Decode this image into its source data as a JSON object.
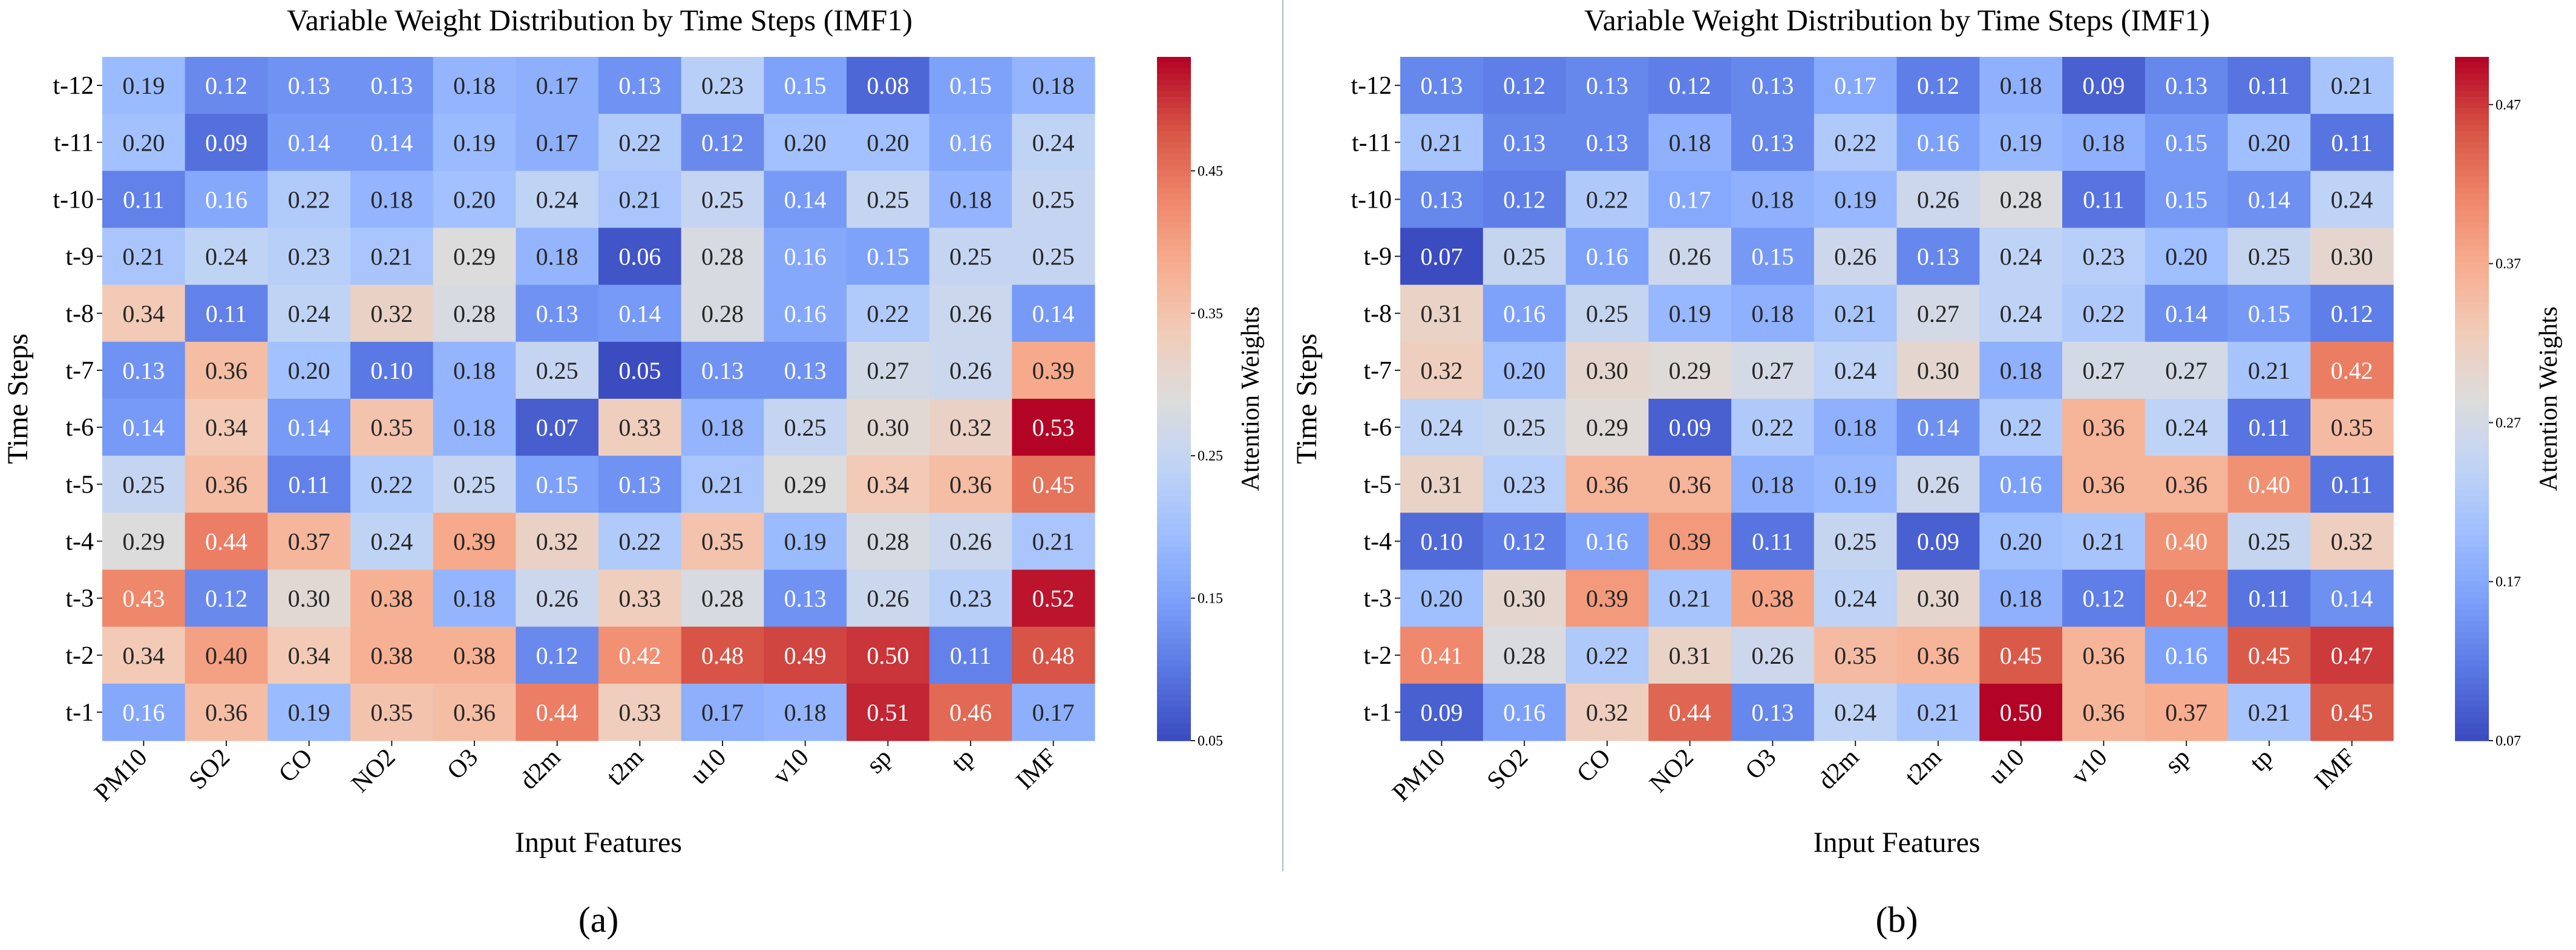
{
  "divider_color": "#a9b8c8",
  "colormap": [
    "#3b4cc0",
    "#5977e3",
    "#7b9ff9",
    "#9ebeff",
    "#c0d4f5",
    "#dddcdc",
    "#f2cbb7",
    "#f7ac8e",
    "#ee8468",
    "#d65244",
    "#b40426"
  ],
  "chart_data": [
    {
      "type": "heatmap",
      "panel_label": "(a)",
      "title": "Variable Weight Distribution by Time Steps (IMF1)",
      "xlabel": "Input Features",
      "ylabel": "Time Steps",
      "colorbar_label": "Attention Weights",
      "x": [
        "PM10",
        "SO2",
        "CO",
        "NO2",
        "O3",
        "d2m",
        "t2m",
        "u10",
        "v10",
        "sp",
        "tp",
        "IMF"
      ],
      "y": [
        "t-12",
        "t-11",
        "t-10",
        "t-9",
        "t-8",
        "t-7",
        "t-6",
        "t-5",
        "t-4",
        "t-3",
        "t-2",
        "t-1"
      ],
      "vlim": [
        0.05,
        0.53
      ],
      "colorbar_ticks": [
        "0.05",
        "0.15",
        "0.25",
        "0.35",
        "0.45"
      ],
      "values": [
        [
          0.19,
          0.12,
          0.13,
          0.13,
          0.18,
          0.17,
          0.13,
          0.23,
          0.15,
          0.08,
          0.15,
          0.18
        ],
        [
          0.2,
          0.09,
          0.14,
          0.14,
          0.19,
          0.17,
          0.22,
          0.12,
          0.2,
          0.2,
          0.16,
          0.24
        ],
        [
          0.11,
          0.16,
          0.22,
          0.18,
          0.2,
          0.24,
          0.21,
          0.25,
          0.14,
          0.25,
          0.18,
          0.25
        ],
        [
          0.21,
          0.24,
          0.23,
          0.21,
          0.29,
          0.18,
          0.06,
          0.28,
          0.16,
          0.15,
          0.25,
          0.25
        ],
        [
          0.34,
          0.11,
          0.24,
          0.32,
          0.28,
          0.13,
          0.14,
          0.28,
          0.16,
          0.22,
          0.26,
          0.14
        ],
        [
          0.13,
          0.36,
          0.2,
          0.1,
          0.18,
          0.25,
          0.05,
          0.13,
          0.13,
          0.27,
          0.26,
          0.39
        ],
        [
          0.14,
          0.34,
          0.14,
          0.35,
          0.18,
          0.07,
          0.33,
          0.18,
          0.25,
          0.3,
          0.32,
          0.53
        ],
        [
          0.25,
          0.36,
          0.11,
          0.22,
          0.25,
          0.15,
          0.13,
          0.21,
          0.29,
          0.34,
          0.36,
          0.45
        ],
        [
          0.29,
          0.44,
          0.37,
          0.24,
          0.39,
          0.32,
          0.22,
          0.35,
          0.19,
          0.28,
          0.26,
          0.21
        ],
        [
          0.43,
          0.12,
          0.3,
          0.38,
          0.18,
          0.26,
          0.33,
          0.28,
          0.13,
          0.26,
          0.23,
          0.52
        ],
        [
          0.34,
          0.4,
          0.34,
          0.38,
          0.38,
          0.12,
          0.42,
          0.48,
          0.49,
          0.5,
          0.11,
          0.48
        ],
        [
          0.16,
          0.36,
          0.19,
          0.35,
          0.36,
          0.44,
          0.33,
          0.17,
          0.18,
          0.51,
          0.46,
          0.17
        ]
      ]
    },
    {
      "type": "heatmap",
      "panel_label": "(b)",
      "title": "Variable Weight Distribution by Time Steps (IMF1)",
      "xlabel": "Input Features",
      "ylabel": "Time Steps",
      "colorbar_label": "Attention Weights",
      "x": [
        "PM10",
        "SO2",
        "CO",
        "NO2",
        "O3",
        "d2m",
        "t2m",
        "u10",
        "v10",
        "sp",
        "tp",
        "IMF"
      ],
      "y": [
        "t-12",
        "t-11",
        "t-10",
        "t-9",
        "t-8",
        "t-7",
        "t-6",
        "t-5",
        "t-4",
        "t-3",
        "t-2",
        "t-1"
      ],
      "vlim": [
        0.07,
        0.5
      ],
      "colorbar_ticks": [
        "0.07",
        "0.17",
        "0.27",
        "0.37",
        "0.47"
      ],
      "values": [
        [
          0.13,
          0.12,
          0.13,
          0.12,
          0.13,
          0.17,
          0.12,
          0.18,
          0.09,
          0.13,
          0.11,
          0.21
        ],
        [
          0.21,
          0.13,
          0.13,
          0.18,
          0.13,
          0.22,
          0.16,
          0.19,
          0.18,
          0.15,
          0.2,
          0.11
        ],
        [
          0.13,
          0.12,
          0.22,
          0.17,
          0.18,
          0.19,
          0.26,
          0.28,
          0.11,
          0.15,
          0.14,
          0.24
        ],
        [
          0.07,
          0.25,
          0.16,
          0.26,
          0.15,
          0.26,
          0.13,
          0.24,
          0.23,
          0.2,
          0.25,
          0.3
        ],
        [
          0.31,
          0.16,
          0.25,
          0.19,
          0.18,
          0.21,
          0.27,
          0.24,
          0.22,
          0.14,
          0.15,
          0.12
        ],
        [
          0.32,
          0.2,
          0.3,
          0.29,
          0.27,
          0.24,
          0.3,
          0.18,
          0.27,
          0.27,
          0.21,
          0.42
        ],
        [
          0.24,
          0.25,
          0.29,
          0.09,
          0.22,
          0.18,
          0.14,
          0.22,
          0.36,
          0.24,
          0.11,
          0.35
        ],
        [
          0.31,
          0.23,
          0.36,
          0.36,
          0.18,
          0.19,
          0.26,
          0.16,
          0.36,
          0.36,
          0.4,
          0.11
        ],
        [
          0.1,
          0.12,
          0.16,
          0.39,
          0.11,
          0.25,
          0.09,
          0.2,
          0.21,
          0.4,
          0.25,
          0.32
        ],
        [
          0.2,
          0.3,
          0.39,
          0.21,
          0.38,
          0.24,
          0.3,
          0.18,
          0.12,
          0.42,
          0.11,
          0.14
        ],
        [
          0.41,
          0.28,
          0.22,
          0.31,
          0.26,
          0.35,
          0.36,
          0.45,
          0.36,
          0.16,
          0.45,
          0.47
        ],
        [
          0.09,
          0.16,
          0.32,
          0.44,
          0.13,
          0.24,
          0.21,
          0.5,
          0.36,
          0.37,
          0.21,
          0.45
        ]
      ]
    }
  ]
}
